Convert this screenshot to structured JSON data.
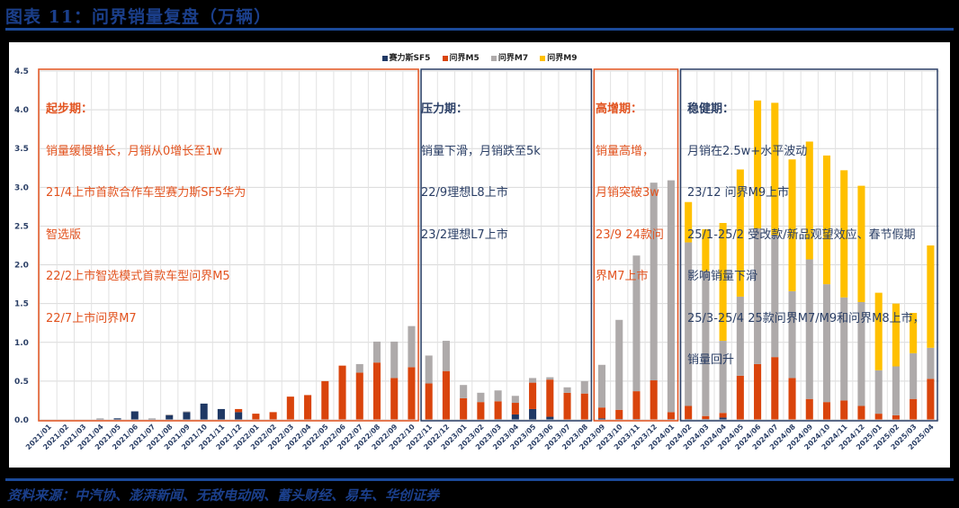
{
  "header": {
    "title": "图表 11：问界销量复盘（万辆）"
  },
  "footer": {
    "source": "资料来源：中汽协、澎湃新闻、无敌电动网、蓄头财经、易车、华创证券"
  },
  "legend": [
    {
      "name": "赛力斯SF5",
      "color": "#1f3864"
    },
    {
      "name": "问界M5",
      "color": "#d9440c"
    },
    {
      "name": "问界M7",
      "color": "#aeaaaa"
    },
    {
      "name": "问界M9",
      "color": "#ffc000"
    }
  ],
  "annotations": [
    {
      "title": "起步期：",
      "lines": [
        "销量缓慢增长，月销从0增长至1w",
        "21/4上市首款合作车型赛力斯SF5华为",
        "智选版",
        "22/2上市智选模式首款车型问界M5",
        "22/7上市问界M7"
      ],
      "color": "orange"
    },
    {
      "title": "压力期：",
      "lines": [
        "销量下滑，月销跌至5k",
        "22/9理想L8上市",
        "23/2理想L7上市"
      ],
      "color": "navy"
    },
    {
      "title": "高增期：",
      "lines": [
        "销量高增，",
        "月销突破3w",
        "23/9 24款问",
        "界M7上市"
      ],
      "color": "orange"
    },
    {
      "title": "稳健期：",
      "lines": [
        "月销在2.5w+水平波动",
        "23/12 问界M9上市",
        "25/1-25/2 受改款/新品观望效应、春节假期",
        "影响销量下滑",
        "25/3-25/4 25款问界M7/M9和问界M8上市，",
        "销量回升"
      ],
      "color": "navy"
    }
  ],
  "chart_data": {
    "type": "bar",
    "stacked": true,
    "title": "问界销量复盘（万辆）",
    "xlabel": "",
    "ylabel": "万辆",
    "ylim": [
      0,
      4.5
    ],
    "yticks": [
      "0.0",
      "0.5",
      "1.0",
      "1.5",
      "2.0",
      "2.5",
      "3.0",
      "3.5",
      "4.0",
      "4.5"
    ],
    "grid": true,
    "legend_position": "top",
    "categories": [
      "2021/01",
      "2021/02",
      "2021/03",
      "2021/04",
      "2021/05",
      "2021/06",
      "2021/07",
      "2021/08",
      "2021/09",
      "2021/10",
      "2021/11",
      "2021/12",
      "2022/01",
      "2022/02",
      "2022/03",
      "2022/04",
      "2022/05",
      "2022/06",
      "2022/07",
      "2022/08",
      "2022/09",
      "2022/10",
      "2022/11",
      "2022/12",
      "2023/01",
      "2023/02",
      "2023/03",
      "2023/04",
      "2023/05",
      "2023/06",
      "2023/07",
      "2023/08",
      "2023/09",
      "2023/10",
      "2023/11",
      "2023/12",
      "2024/01",
      "2024/02",
      "2024/03",
      "2024/04",
      "2024/05",
      "2024/06",
      "2024/07",
      "2024/08",
      "2024/09",
      "2024/10",
      "2024/11",
      "2024/12",
      "2025/01",
      "2025/02",
      "2025/03",
      "2025/04"
    ],
    "series": [
      {
        "name": "赛力斯SF5",
        "color": "#1f3864",
        "values": [
          0,
          0,
          0,
          0.01,
          0.02,
          0.11,
          0.01,
          0.06,
          0.1,
          0.21,
          0.14,
          0.1,
          0,
          0,
          0,
          0,
          0,
          0,
          0,
          0,
          0,
          0,
          0,
          0,
          0,
          0,
          0.01,
          0.07,
          0.14,
          0.04,
          0,
          0,
          0.02,
          0.01,
          0.01,
          0,
          0.01,
          0.01,
          0.01,
          0.03,
          0,
          0,
          0,
          0,
          0,
          0,
          0,
          0,
          0,
          0,
          0,
          0
        ]
      },
      {
        "name": "问界M5",
        "color": "#d9440c",
        "values": [
          0,
          0,
          0,
          0,
          0,
          0,
          0,
          0,
          0,
          0,
          0,
          0.04,
          0.08,
          0.1,
          0.3,
          0.32,
          0.5,
          0.7,
          0.61,
          0.74,
          0.54,
          0.68,
          0.47,
          0.63,
          0.28,
          0.23,
          0.23,
          0.15,
          0.34,
          0.48,
          0.35,
          0.34,
          0.14,
          0.12,
          0.36,
          0.51,
          0.09,
          0.17,
          0.04,
          0.06,
          0.57,
          0.72,
          0.81,
          0.54,
          0.27,
          0.23,
          0.25,
          0.18,
          0.08,
          0.06,
          0.27,
          0.53
        ]
      },
      {
        "name": "问界M7",
        "color": "#aeaaaa",
        "values": [
          0,
          0,
          0,
          0.01,
          0,
          0,
          0.01,
          0.01,
          0.01,
          0,
          0,
          0,
          0,
          0,
          0,
          0,
          0,
          0,
          0.11,
          0.27,
          0.47,
          0.53,
          0.36,
          0.39,
          0.17,
          0.12,
          0.14,
          0.09,
          0.06,
          0.03,
          0.07,
          0.16,
          0.55,
          1.16,
          1.75,
          2.55,
          2.99,
          2.11,
          1.87,
          0.93,
          1.02,
          1.75,
          1.57,
          1.12,
          1.8,
          1.52,
          1.33,
          1.34,
          0.56,
          0.63,
          0.59,
          0.4
        ]
      },
      {
        "name": "问界M9",
        "color": "#ffc000",
        "values": [
          0,
          0,
          0,
          0,
          0,
          0,
          0,
          0,
          0,
          0,
          0,
          0,
          0,
          0,
          0,
          0,
          0,
          0,
          0,
          0,
          0,
          0,
          0,
          0,
          0,
          0,
          0,
          0,
          0,
          0,
          0,
          0,
          0,
          0,
          0,
          0,
          0,
          0.52,
          0.54,
          1.52,
          1.64,
          1.65,
          1.71,
          1.7,
          1.52,
          1.66,
          1.64,
          1.5,
          1.0,
          0.81,
          0.52,
          1.32
        ]
      }
    ],
    "period_boxes": [
      {
        "label": "起步期",
        "from": "2021/01",
        "to": "2022/10",
        "color": "#e2531f"
      },
      {
        "label": "压力期",
        "from": "2022/11",
        "to": "2023/08",
        "color": "#2b3f66"
      },
      {
        "label": "高增期",
        "from": "2023/09",
        "to": "2024/01",
        "color": "#e2531f"
      },
      {
        "label": "稳健期",
        "from": "2024/02",
        "to": "2025/04",
        "color": "#2b3f66"
      }
    ]
  }
}
